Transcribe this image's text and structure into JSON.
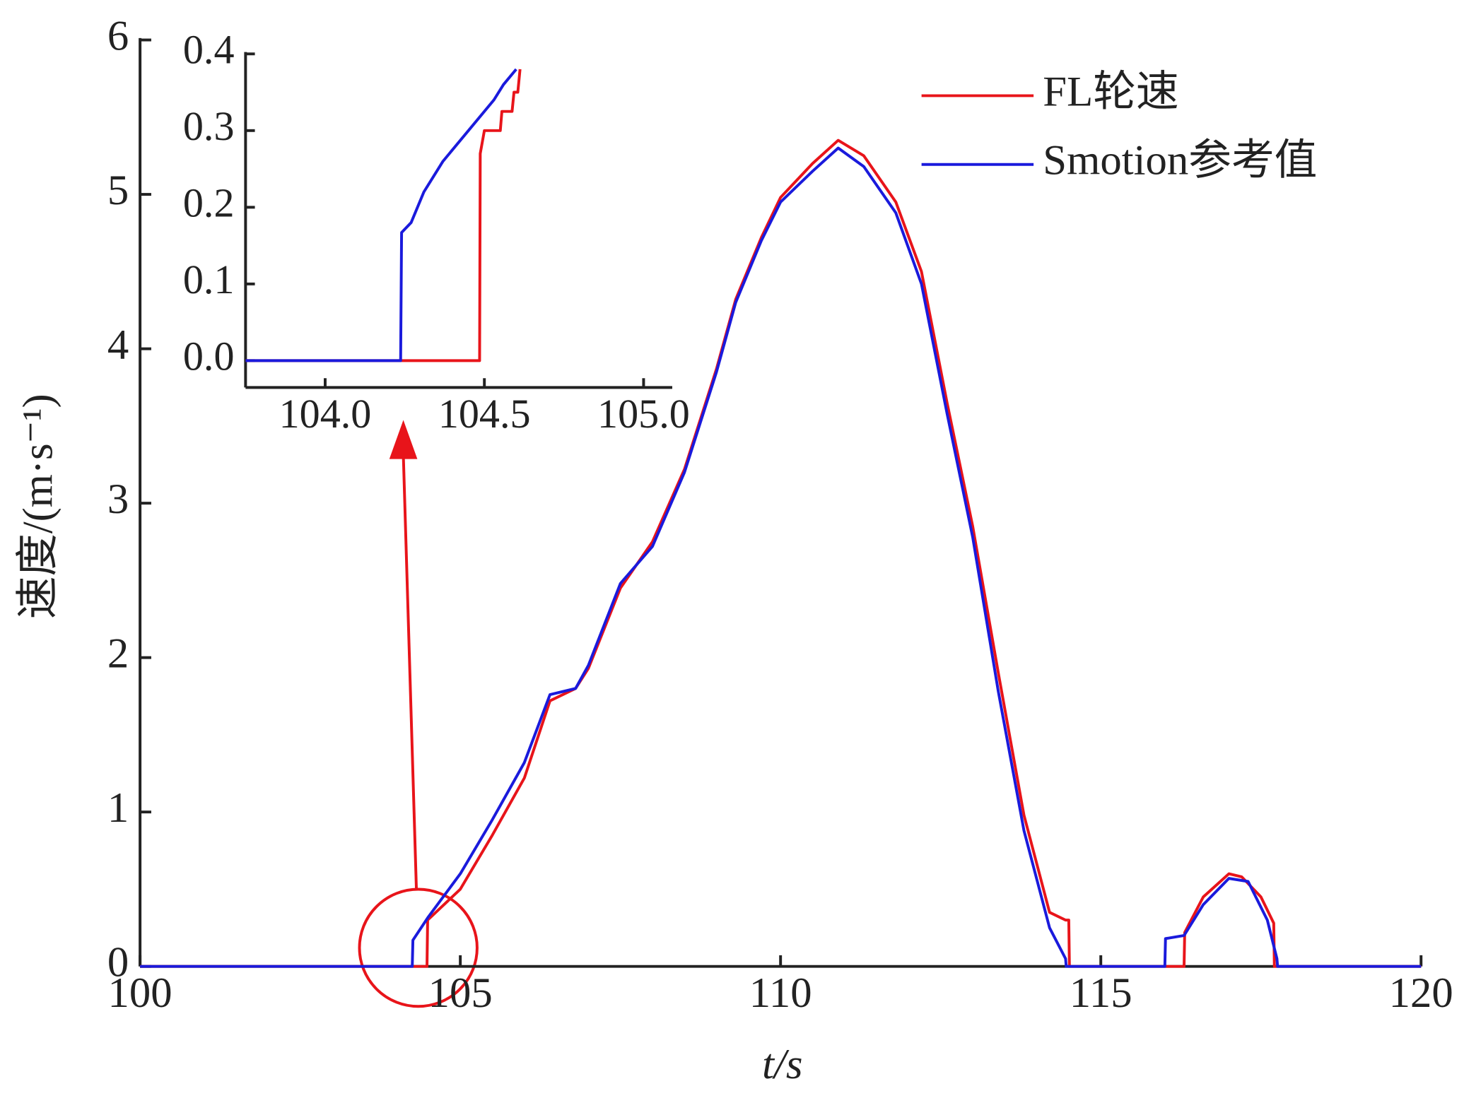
{
  "chart_data": [
    {
      "type": "line",
      "xlabel": "t/s",
      "ylabel": "速度/(m·s⁻¹)",
      "xlim": [
        100,
        120
      ],
      "ylim": [
        0,
        6
      ],
      "xticks": [
        100,
        105,
        110,
        115,
        120
      ],
      "yticks": [
        0,
        1,
        2,
        3,
        4,
        5,
        6
      ],
      "legend": "upper right",
      "series": [
        {
          "name": "FL轮速",
          "color": "#e8141a",
          "x": [
            100,
            104.48,
            104.49,
            105,
            105.5,
            106,
            106.4,
            106.8,
            107,
            107.5,
            108,
            108.5,
            109,
            109.3,
            109.7,
            110,
            110.5,
            110.9,
            111.3,
            111.8,
            112.2,
            112.6,
            113,
            113.4,
            113.8,
            114.2,
            114.45,
            114.5,
            114.51,
            116.3,
            116.31,
            116.6,
            117,
            117.2,
            117.5,
            117.7,
            117.71,
            120
          ],
          "values": [
            0,
            0,
            0.3,
            0.5,
            0.85,
            1.22,
            1.72,
            1.8,
            1.93,
            2.45,
            2.75,
            3.22,
            3.87,
            4.32,
            4.72,
            4.98,
            5.2,
            5.35,
            5.25,
            4.95,
            4.5,
            3.65,
            2.85,
            1.9,
            0.98,
            0.35,
            0.3,
            0.3,
            0,
            0,
            0.22,
            0.45,
            0.6,
            0.58,
            0.45,
            0.28,
            0,
            0
          ]
        },
        {
          "name": "Smotion参考值",
          "color": "#1a1adc",
          "x": [
            100,
            104.25,
            104.26,
            104.5,
            105,
            105.5,
            106,
            106.4,
            106.8,
            107,
            107.5,
            108,
            108.5,
            109,
            109.3,
            109.7,
            110,
            110.5,
            110.9,
            111.3,
            111.8,
            112.2,
            112.6,
            113,
            113.4,
            113.8,
            114.2,
            114.45,
            114.46,
            116,
            116.01,
            116.3,
            116.6,
            117,
            117.3,
            117.6,
            117.75,
            117.76,
            120
          ],
          "values": [
            0,
            0,
            0.17,
            0.32,
            0.6,
            0.95,
            1.32,
            1.76,
            1.8,
            1.95,
            2.48,
            2.72,
            3.2,
            3.85,
            4.3,
            4.7,
            4.95,
            5.15,
            5.3,
            5.18,
            4.88,
            4.42,
            3.58,
            2.78,
            1.78,
            0.88,
            0.25,
            0.05,
            0,
            0,
            0.18,
            0.2,
            0.4,
            0.57,
            0.55,
            0.3,
            0.05,
            0,
            0
          ]
        }
      ]
    },
    {
      "type": "line",
      "xlim": [
        103.75,
        105.09
      ],
      "ylim": [
        -0.035,
        0.4
      ],
      "xticks": [
        {
          "value": 104.0,
          "label": "104.0"
        },
        {
          "value": 104.5,
          "label": "104.5"
        },
        {
          "value": 105.0,
          "label": "105.0"
        }
      ],
      "yticks": [
        {
          "value": 0,
          "label": "0.0"
        },
        {
          "value": 0.1,
          "label": "0.1"
        },
        {
          "value": 0.2,
          "label": "0.2"
        },
        {
          "value": 0.3,
          "label": "0.3"
        },
        {
          "value": 0.4,
          "label": "0.4"
        }
      ],
      "series": [
        {
          "color": "#e8141a",
          "x": [
            103.75,
            104.485,
            104.487,
            104.5,
            104.505,
            104.55,
            104.555,
            104.587,
            104.593,
            104.605,
            104.612
          ],
          "values": [
            0,
            0,
            0.27,
            0.3,
            0.3,
            0.3,
            0.325,
            0.325,
            0.35,
            0.35,
            0.38
          ]
        },
        {
          "color": "#1a1adc",
          "x": [
            103.75,
            104.237,
            104.24,
            104.27,
            104.31,
            104.37,
            104.53,
            104.56,
            104.6
          ],
          "values": [
            0,
            0,
            0.167,
            0.18,
            0.22,
            0.26,
            0.34,
            0.36,
            0.38
          ]
        }
      ]
    }
  ]
}
